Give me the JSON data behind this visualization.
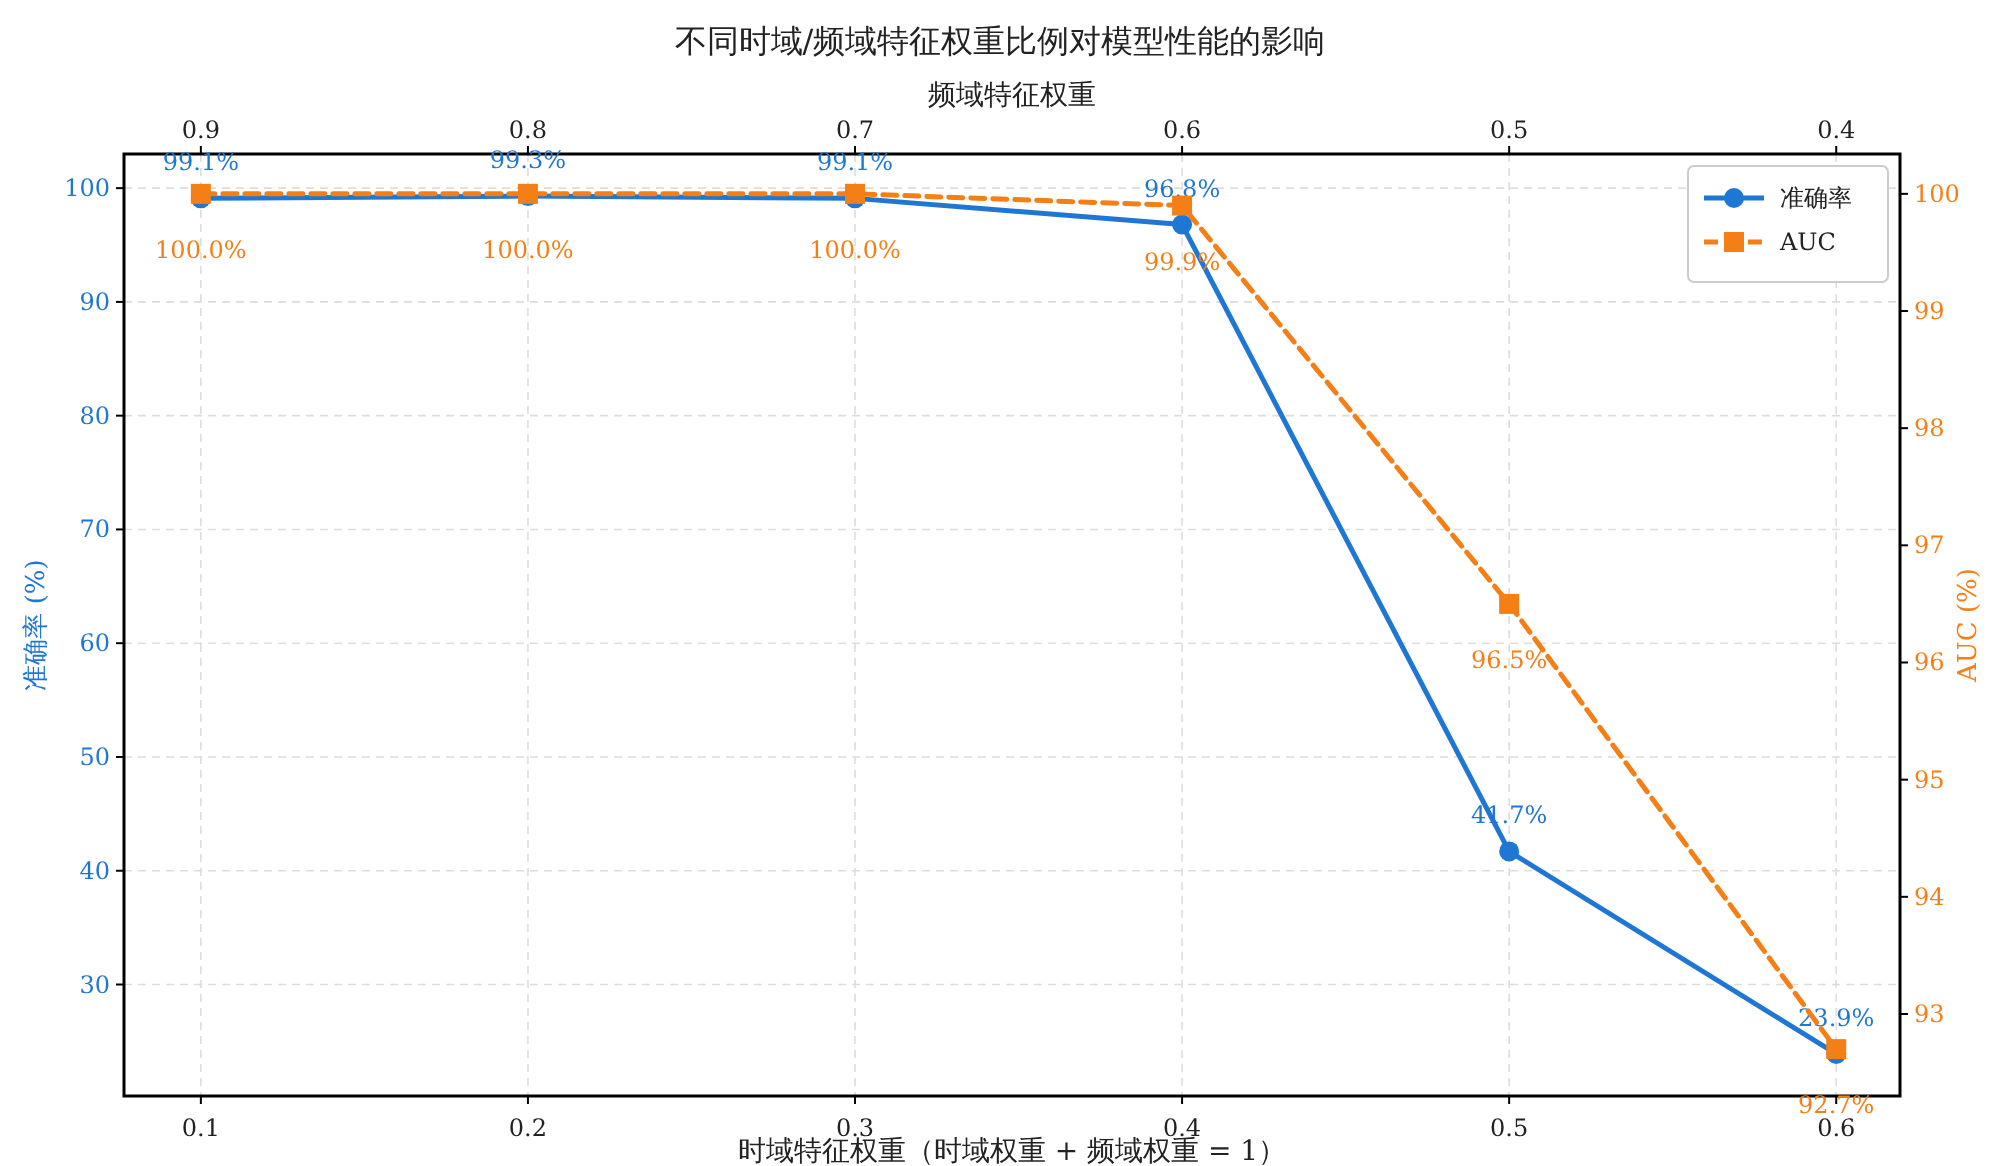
{
  "chart_data": {
    "type": "line",
    "title": "不同时域/频域特征权重比例对模型性能的影响",
    "xlabel": "时域特征权重（时域权重 + 频域权重 = 1）",
    "x2label": "频域特征权重",
    "ylabel": "准确率 (%)",
    "y2label": "AUC (%)",
    "x": [
      0.1,
      0.2,
      0.3,
      0.4,
      0.5,
      0.6
    ],
    "xlim": [
      0.0765,
      0.6195
    ],
    "xticks": [
      0.1,
      0.2,
      0.3,
      0.4,
      0.5,
      0.6
    ],
    "x2lim": [
      0.9235,
      0.3805
    ],
    "x2ticks": [
      0.9,
      0.8,
      0.7,
      0.6,
      0.5,
      0.4
    ],
    "ylim": [
      20.2,
      103
    ],
    "yticks": [
      30,
      40,
      50,
      60,
      70,
      80,
      90,
      100
    ],
    "y2lim": [
      92.3,
      100.34
    ],
    "y2ticks": [
      93,
      94,
      95,
      96,
      97,
      98,
      99,
      100
    ],
    "grid": true,
    "legend": "top right",
    "series": [
      {
        "name": "准确率",
        "color": "#1f77d4",
        "marker": "circle",
        "line_style": "solid",
        "values": [
          99.1,
          99.3,
          99.1,
          96.8,
          41.7,
          23.9
        ],
        "value_labels": [
          "99.1%",
          "99.3%",
          "99.1%",
          "96.8%",
          "41.7%",
          "23.9%"
        ]
      },
      {
        "name": "AUC",
        "color": "#f57f17",
        "axis": "y2",
        "marker": "square",
        "line_style": "dashed",
        "values": [
          100.0,
          100.0,
          100.0,
          99.9,
          96.5,
          92.7
        ],
        "value_labels": [
          "100.0%",
          "100.0%",
          "100.0%",
          "99.9%",
          "96.5%",
          "92.7%"
        ]
      }
    ]
  }
}
